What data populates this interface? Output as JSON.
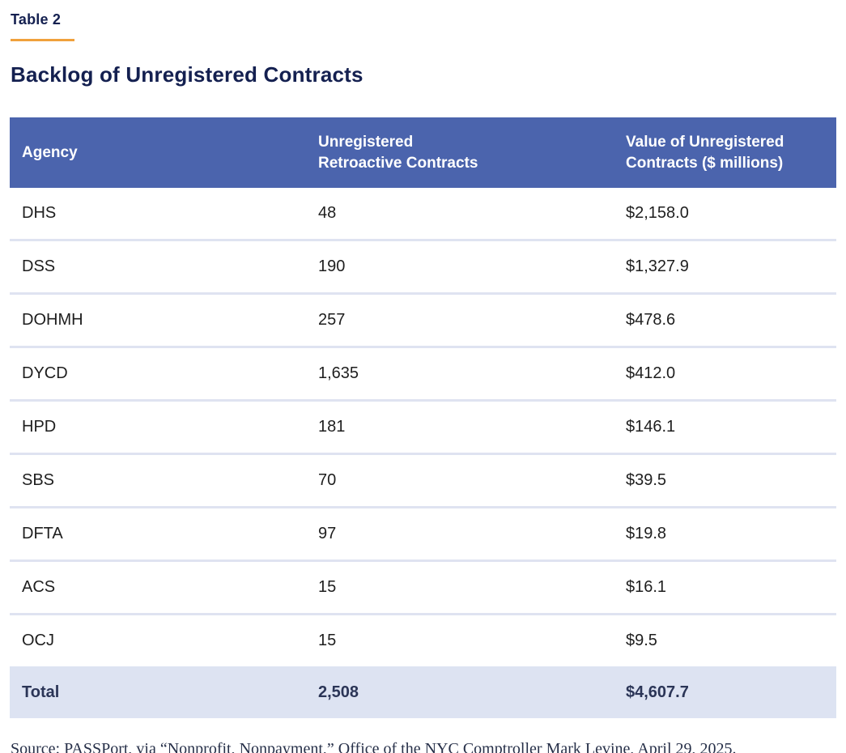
{
  "page": {
    "table_label": "Table 2",
    "title": "Backlog of Unregistered Contracts",
    "source": "Source: PASSPort, via “Nonprofit, Nonpayment,” Office of the NYC Comptroller Mark Levine, April 29, 2025."
  },
  "colors": {
    "header_bg": "#4b64ad",
    "header_text": "#ffffff",
    "total_row_bg": "#dde3f2",
    "row_separator": "#dfe3f1",
    "title_text": "#142050",
    "accent_underline": "#f0a13c",
    "body_text": "#1e1e1e"
  },
  "table": {
    "columns": [
      {
        "lines": [
          "Agency"
        ]
      },
      {
        "lines": [
          "Unregistered",
          "Retroactive Contracts"
        ]
      },
      {
        "lines": [
          "Value of Unregistered",
          "Contracts ($ millions)"
        ]
      }
    ],
    "rows": [
      {
        "agency": "DHS",
        "contracts": "48",
        "value": "$2,158.0"
      },
      {
        "agency": "DSS",
        "contracts": "190",
        "value": "$1,327.9"
      },
      {
        "agency": "DOHMH",
        "contracts": "257",
        "value": "$478.6"
      },
      {
        "agency": "DYCD",
        "contracts": "1,635",
        "value": "$412.0"
      },
      {
        "agency": "HPD",
        "contracts": "181",
        "value": "$146.1"
      },
      {
        "agency": "SBS",
        "contracts": "70",
        "value": "$39.5"
      },
      {
        "agency": "DFTA",
        "contracts": "97",
        "value": "$19.8"
      },
      {
        "agency": "ACS",
        "contracts": "15",
        "value": "$16.1"
      },
      {
        "agency": "OCJ",
        "contracts": "15",
        "value": "$9.5"
      }
    ],
    "total": {
      "label": "Total",
      "contracts": "2,508",
      "value": "$4,607.7"
    }
  }
}
